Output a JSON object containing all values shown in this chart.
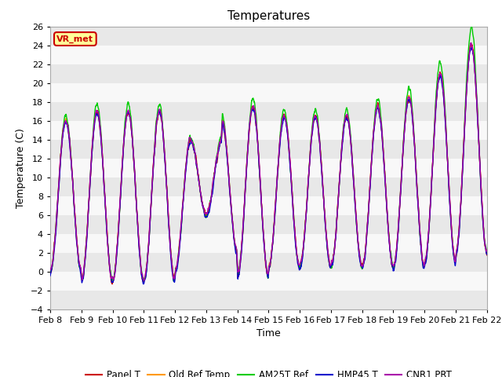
{
  "title": "Temperatures",
  "xlabel": "Time",
  "ylabel": "Temperature (C)",
  "ylim": [
    -4,
    26
  ],
  "yticks": [
    -4,
    -2,
    0,
    2,
    4,
    6,
    8,
    10,
    12,
    14,
    16,
    18,
    20,
    22,
    24,
    26
  ],
  "xtick_labels": [
    "Feb 8",
    "Feb 9",
    "Feb 10",
    "Feb 11",
    "Feb 12",
    "Feb 13",
    "Feb 14",
    "Feb 15",
    "Feb 16",
    "Feb 17",
    "Feb 18",
    "Feb 19",
    "Feb 20",
    "Feb 21",
    "Feb 22"
  ],
  "series": [
    {
      "label": "Panel T",
      "color": "#cc0000",
      "lw": 1.0,
      "zorder": 3
    },
    {
      "label": "Old Ref Temp",
      "color": "#ff9900",
      "lw": 1.0,
      "zorder": 2
    },
    {
      "label": "AM25T Ref",
      "color": "#00cc00",
      "lw": 1.0,
      "zorder": 4
    },
    {
      "label": "HMP45 T",
      "color": "#0000cc",
      "lw": 1.0,
      "zorder": 5
    },
    {
      "label": "CNR1 PRT",
      "color": "#aa00aa",
      "lw": 1.0,
      "zorder": 6
    }
  ],
  "annotation_text": "VR_met",
  "background_color": "#ffffff",
  "band_colors": [
    "#e8e8e8",
    "#f8f8f8"
  ],
  "num_points": 2000,
  "days": 14
}
